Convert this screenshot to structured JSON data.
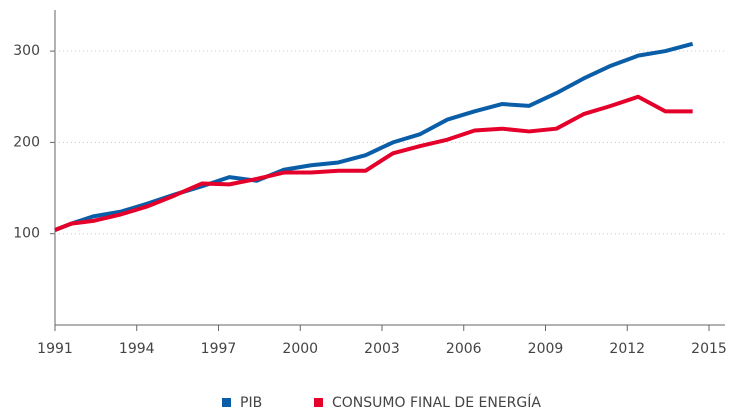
{
  "chart_data": {
    "type": "line",
    "x": [
      1991,
      1991.6,
      1992.4,
      1993.4,
      1994.4,
      1995.4,
      1996.4,
      1997.4,
      1998.4,
      1999.4,
      2000.4,
      2001.4,
      2002.4,
      2003.4,
      2004.4,
      2005.4,
      2006.4,
      2007.4,
      2008.4,
      2009.4,
      2010.4,
      2011.4,
      2012.4,
      2013.4,
      2014.4
    ],
    "series": [
      {
        "name": "PIB",
        "color": "#0a5ea8",
        "values": [
          104,
          111,
          119,
          124,
          133,
          143,
          152,
          162,
          158,
          170,
          175,
          178,
          186,
          200,
          209,
          225,
          234,
          242,
          240,
          254,
          270,
          284,
          295,
          300,
          308
        ]
      },
      {
        "name": "CONSUMO FINAL DE ENERGÍA",
        "color": "#e4002b",
        "values": [
          104,
          111,
          114,
          121,
          130,
          142,
          155,
          154,
          160,
          167,
          167,
          169,
          169,
          188,
          196,
          203,
          213,
          215,
          212,
          215,
          231,
          240,
          250,
          234,
          234
        ]
      }
    ],
    "xlim": [
      1991,
      2015
    ],
    "xticks": [
      1991,
      1994,
      1997,
      2000,
      2003,
      2006,
      2009,
      2012,
      2015
    ],
    "ylim": [
      0,
      345
    ],
    "yticks": [
      100,
      200,
      300
    ],
    "grid": true
  }
}
